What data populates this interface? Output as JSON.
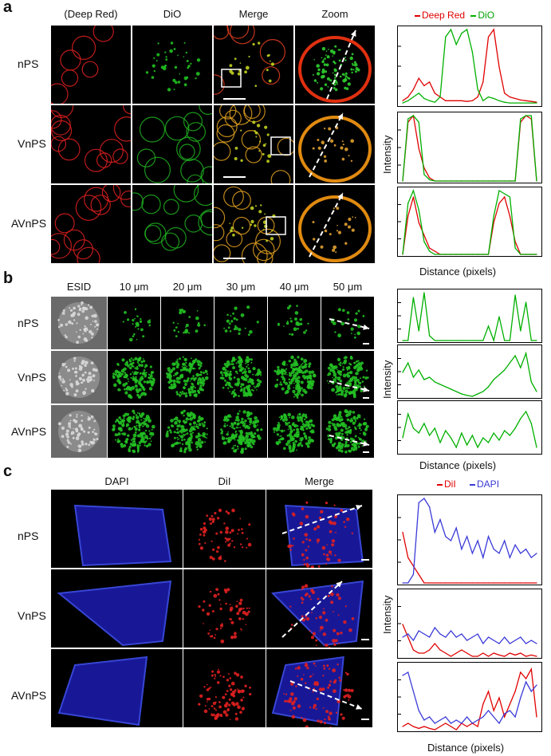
{
  "panels": {
    "a": {
      "letter": "a",
      "columns": [
        "(Deep Red)",
        "DiO",
        "Merge",
        "Zoom"
      ],
      "rows": [
        "nPS",
        "VnPS",
        "AVnPS"
      ],
      "legend": [
        {
          "label": "Deep Red",
          "color": "#e00000"
        },
        {
          "label": "DiO",
          "color": "#00b000"
        }
      ],
      "xlabel": "Distance (pixels)",
      "ylabel": "Intensity"
    },
    "b": {
      "letter": "b",
      "columns": [
        "ESID",
        "10 μm",
        "20 μm",
        "30 μm",
        "40 μm",
        "50 μm"
      ],
      "rows": [
        "nPS",
        "VnPS",
        "AVnPS"
      ],
      "xlabel": "Distance (pixels)",
      "ylabel": "Intensity"
    },
    "c": {
      "letter": "c",
      "columns": [
        "DAPI",
        "DiI",
        "Merge"
      ],
      "rows": [
        "nPS",
        "VnPS",
        "AVnPS"
      ],
      "legend": [
        {
          "label": "DiI",
          "color": "#e00000"
        },
        {
          "label": "DAPI",
          "color": "#3a3ad8"
        }
      ],
      "xlabel": "Distance (pixels)",
      "ylabel": "Intensity"
    }
  },
  "colors": {
    "red": "#e00000",
    "green": "#00b000",
    "blue": "#3a3ad8"
  },
  "chart_data": [
    {
      "type": "line",
      "panel": "a",
      "row": "nPS",
      "series": [
        {
          "name": "Deep Red",
          "values": [
            0.05,
            0.1,
            0.2,
            0.35,
            0.25,
            0.3,
            0.15,
            0.1,
            0.05,
            0.05,
            0.05,
            0.05,
            0.04,
            0.05,
            0.1,
            0.3,
            0.9,
            1.0,
            0.5,
            0.15,
            0.1,
            0.08,
            0.06,
            0.05,
            0.04,
            0.03
          ]
        },
        {
          "name": "DiO",
          "values": [
            0.02,
            0.05,
            0.1,
            0.15,
            0.08,
            0.05,
            0.03,
            0.1,
            0.9,
            1.0,
            0.8,
            0.95,
            1.0,
            0.7,
            0.2,
            0.05,
            0.1,
            0.08,
            0.05,
            0.03,
            0.02,
            0.02,
            0.02,
            0.02,
            0.02,
            0.02
          ]
        }
      ]
    },
    {
      "type": "line",
      "panel": "a",
      "row": "VnPS",
      "series": [
        {
          "name": "Deep Red",
          "values": [
            0,
            0.9,
            1.0,
            0.5,
            0.2,
            0.05,
            0,
            0,
            0,
            0,
            0,
            0,
            0,
            0,
            0,
            0,
            0,
            0,
            0,
            0,
            0,
            0,
            0.9,
            1.0,
            0.95,
            0
          ]
        },
        {
          "name": "DiO",
          "values": [
            0,
            0.95,
            1.0,
            0.9,
            0.1,
            0.02,
            0,
            0,
            0,
            0,
            0,
            0,
            0,
            0,
            0,
            0,
            0,
            0,
            0,
            0,
            0,
            0,
            0.95,
            1.0,
            1.0,
            0
          ]
        }
      ]
    },
    {
      "type": "line",
      "panel": "a",
      "row": "AVnPS",
      "series": [
        {
          "name": "Deep Red",
          "values": [
            0,
            0.6,
            0.9,
            0.5,
            0.3,
            0.1,
            0.05,
            0,
            0,
            0,
            0,
            0,
            0,
            0,
            0,
            0,
            0,
            0.5,
            0.8,
            0.9,
            0.6,
            0.2,
            0,
            0,
            0,
            0
          ]
        },
        {
          "name": "DiO",
          "values": [
            0,
            0.8,
            1.0,
            0.7,
            0.2,
            0.05,
            0,
            0,
            0,
            0,
            0,
            0,
            0,
            0,
            0,
            0,
            0,
            0.6,
            1.0,
            0.95,
            0.9,
            0.1,
            0,
            0,
            0,
            0
          ]
        }
      ]
    },
    {
      "type": "line",
      "panel": "b",
      "row": "nPS",
      "series": [
        {
          "name": "",
          "values": [
            0,
            0,
            0.9,
            0.2,
            1.0,
            0.1,
            0,
            0,
            0,
            0,
            0,
            0,
            0,
            0,
            0,
            0,
            0.3,
            0,
            0.5,
            0,
            0,
            0.95,
            0.2,
            0.8,
            0,
            0
          ]
        }
      ]
    },
    {
      "type": "line",
      "panel": "b",
      "row": "VnPS",
      "series": [
        {
          "name": "",
          "values": [
            0.5,
            0.7,
            0.4,
            0.55,
            0.35,
            0.4,
            0.3,
            0.25,
            0.2,
            0.15,
            0.1,
            0.05,
            0.02,
            0,
            0.05,
            0.1,
            0.2,
            0.35,
            0.45,
            0.55,
            0.7,
            0.85,
            0.6,
            0.9,
            0.3,
            0.1
          ]
        }
      ]
    },
    {
      "type": "line",
      "panel": "b",
      "row": "AVnPS",
      "series": [
        {
          "name": "",
          "values": [
            0.3,
            0.8,
            0.5,
            0.4,
            0.6,
            0.35,
            0.5,
            0.2,
            0.45,
            0.3,
            0.1,
            0.4,
            0.15,
            0.35,
            0.1,
            0.3,
            0.2,
            0.4,
            0.25,
            0.45,
            0.35,
            0.5,
            0.7,
            0.85,
            0.6,
            0.1
          ]
        }
      ]
    },
    {
      "type": "line",
      "panel": "c",
      "row": "nPS",
      "series": [
        {
          "name": "DiI",
          "values": [
            0.6,
            0.3,
            0.2,
            0.1,
            0,
            0,
            0,
            0,
            0,
            0,
            0,
            0,
            0,
            0,
            0,
            0,
            0,
            0,
            0,
            0,
            0,
            0,
            0,
            0,
            0,
            0
          ]
        },
        {
          "name": "DAPI",
          "values": [
            0,
            0,
            0.1,
            0.95,
            1.0,
            0.9,
            0.6,
            0.75,
            0.55,
            0.5,
            0.65,
            0.4,
            0.55,
            0.35,
            0.5,
            0.3,
            0.55,
            0.4,
            0.35,
            0.5,
            0.3,
            0.45,
            0.35,
            0.4,
            0.3,
            0.35
          ]
        }
      ]
    },
    {
      "type": "line",
      "panel": "c",
      "row": "VnPS",
      "series": [
        {
          "name": "DiI",
          "values": [
            0.5,
            0.3,
            0.1,
            0.05,
            0.05,
            0.1,
            0.2,
            0.1,
            0.05,
            0,
            0.05,
            0.1,
            0.05,
            0,
            0,
            0.05,
            0,
            0.05,
            0.02,
            0,
            0.05,
            0.02,
            0.05,
            0,
            0.02,
            0
          ]
        },
        {
          "name": "DAPI",
          "values": [
            0.3,
            0.35,
            0.25,
            0.4,
            0.35,
            0.3,
            0.45,
            0.35,
            0.3,
            0.4,
            0.3,
            0.35,
            0.25,
            0.3,
            0.35,
            0.2,
            0.3,
            0.25,
            0.2,
            0.3,
            0.2,
            0.25,
            0.3,
            0.2,
            0.25,
            0.2
          ]
        }
      ]
    },
    {
      "type": "line",
      "panel": "c",
      "row": "AVnPS",
      "series": [
        {
          "name": "DiI",
          "values": [
            0.05,
            0.1,
            0.05,
            0.02,
            0.05,
            0.02,
            0,
            0.05,
            0.1,
            0.05,
            0,
            0.1,
            0.05,
            0.1,
            0.05,
            0.4,
            0.6,
            0.3,
            0.5,
            0.2,
            0.4,
            0.6,
            0.9,
            0.8,
            0.95,
            0.2
          ]
        },
        {
          "name": "DAPI",
          "values": [
            0.85,
            0.9,
            0.6,
            0.3,
            0.15,
            0.2,
            0.1,
            0.15,
            0.2,
            0.1,
            0.15,
            0.1,
            0.2,
            0.1,
            0.15,
            0.2,
            0.3,
            0.2,
            0.1,
            0.25,
            0.3,
            0.2,
            0.5,
            0.75,
            0.6,
            0.7
          ]
        }
      ]
    }
  ]
}
